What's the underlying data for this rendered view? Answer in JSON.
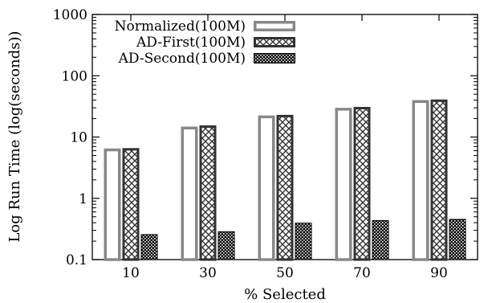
{
  "chart_data": {
    "type": "bar",
    "title": "",
    "xlabel": "% Selected",
    "ylabel": "Log Run Time (log(seconds))",
    "yscale": "log",
    "ylim": [
      0.1,
      1000
    ],
    "yticks": [
      "0.1",
      "1",
      "10",
      "100",
      "1000"
    ],
    "grid": false,
    "legend_position": "top-left",
    "categories": [
      "10",
      "30",
      "50",
      "70",
      "90"
    ],
    "series": [
      {
        "name": "Normalized(100M)",
        "values": [
          6.5,
          14.8,
          22.5,
          30.0,
          40.0
        ],
        "pattern": "hollow",
        "color": "#888888"
      },
      {
        "name": "AD-First(100M)",
        "values": [
          6.6,
          15.5,
          23.0,
          31.0,
          41.0
        ],
        "pattern": "crosshatch",
        "color": "#333333"
      },
      {
        "name": "AD-Second(100M)",
        "values": [
          0.26,
          0.29,
          0.4,
          0.44,
          0.46
        ],
        "pattern": "dense-checker",
        "color": "#000000"
      }
    ]
  }
}
